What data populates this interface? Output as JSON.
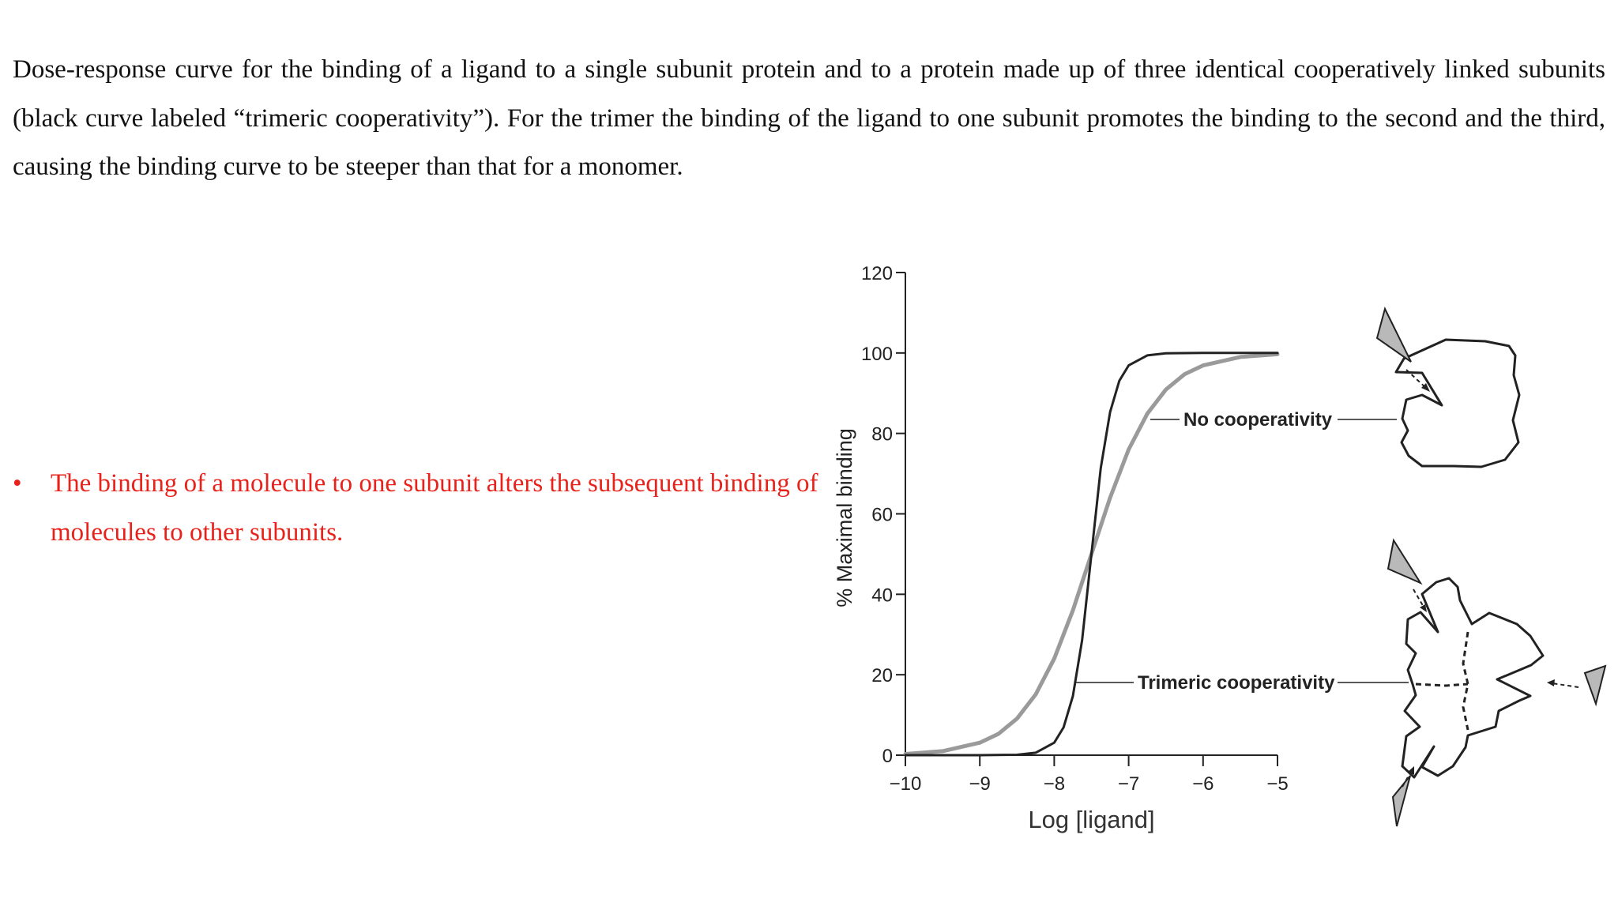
{
  "intro_text": "Dose-response curve for the binding of a ligand to a single subunit protein and to a protein made up of three identical cooperatively linked subunits (black curve labeled “trimeric cooperativity”). For the trimer the binding of the ligand to one subunit promotes the binding to the second and the third, causing the binding curve to be steeper than that for a monomer.",
  "bullet": {
    "symbol": "•",
    "text": "The binding of a molecule to one subunit alters the subsequent binding of molecules to other subunits."
  },
  "colors": {
    "bullet_text": "#e8211b",
    "cooperative_curve": "#222222",
    "no_cooperativity_curve": "#9a9a9a",
    "ligand_fill": "#b9b9b9"
  },
  "chart_data": {
    "type": "line",
    "title": "",
    "xlabel": "Log [ligand]",
    "ylabel": "% Maximal binding",
    "xlim": [
      -10,
      -5
    ],
    "ylim": [
      0,
      120
    ],
    "x_ticks": [
      -10,
      -9,
      -8,
      -7,
      -6,
      -5
    ],
    "x_tick_labels": [
      "−10",
      "−9",
      "−8",
      "−7",
      "−6",
      "−5"
    ],
    "y_ticks": [
      0,
      20,
      40,
      60,
      80,
      100,
      120
    ],
    "y_tick_labels": [
      "0",
      "20",
      "40",
      "60",
      "80",
      "100",
      "120"
    ],
    "grid": false,
    "series": [
      {
        "name": "No cooperativity",
        "color": "#9a9a9a",
        "x": [
          -10,
          -9.5,
          -9,
          -8.75,
          -8.5,
          -8.25,
          -8,
          -7.75,
          -7.5,
          -7.25,
          -7,
          -6.75,
          -6.5,
          -6.25,
          -6,
          -5.5,
          -5
        ],
        "y": [
          0.3,
          1.0,
          3.1,
          5.3,
          9.1,
          15.1,
          24.0,
          36.0,
          50.0,
          64.0,
          76.0,
          84.9,
          90.9,
          94.7,
          96.9,
          99.0,
          99.7
        ]
      },
      {
        "name": "Trimeric cooperativity",
        "color": "#222222",
        "x": [
          -10,
          -9,
          -8.5,
          -8.25,
          -8,
          -7.875,
          -7.75,
          -7.625,
          -7.5,
          -7.375,
          -7.25,
          -7.125,
          -7,
          -6.75,
          -6.5,
          -6,
          -5
        ],
        "y": [
          0,
          0,
          0.1,
          0.6,
          3.1,
          6.9,
          14.7,
          28.6,
          50.0,
          71.4,
          85.3,
          93.1,
          96.9,
          99.4,
          99.9,
          100,
          100
        ]
      }
    ],
    "annotations": [
      "No cooperativity",
      "Trimeric cooperativity"
    ]
  }
}
